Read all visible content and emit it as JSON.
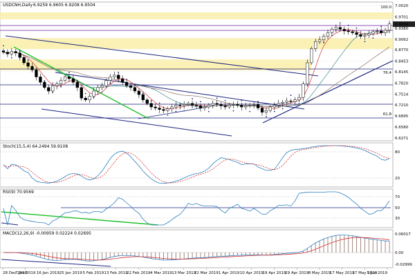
{
  "chart_data": {
    "type": "candlestick",
    "symbol_label": "USDCNH,Daily",
    "ohlc_label": "6.9259 6.9605 6.9208 6.9504",
    "last_price_label": "6.9504",
    "price_axis_labels": [
      "7.0020",
      "6.9701",
      "6.9380",
      "6.9062",
      "6.8770",
      "6.8453",
      "6.8145",
      "6.7820",
      "6.7514",
      "6.7210",
      "6.6895",
      "6.6580",
      "6.6271"
    ],
    "price_ylim": [
      6.6271,
      7.002
    ],
    "fib_labels": {
      "top": "100.0",
      "mid": "76.4",
      "low": "61.8"
    },
    "x_labels": [
      "28 Dec 2018",
      "7 Jan 2019",
      "16 Jan 2019",
      "25 Jan 2019",
      "5 Feb 2019",
      "13 Feb 2019",
      "22 Feb 2019",
      "4 Mar 2019",
      "13 Mar 2019",
      "22 Mar 2019",
      "1 Apr 2019",
      "10 Apr 2019",
      "19 Apr 2019",
      "29 Apr 2019",
      "8 May 2019",
      "17 May 2019",
      "27 May 2019",
      "5 Jun 2019"
    ],
    "closes": [
      6.87,
      6.865,
      6.872,
      6.868,
      6.855,
      6.84,
      6.83,
      6.82,
      6.8,
      6.785,
      6.77,
      6.76,
      6.775,
      6.78,
      6.79,
      6.8,
      6.795,
      6.785,
      6.77,
      6.74,
      6.735,
      6.745,
      6.76,
      6.77,
      6.775,
      6.79,
      6.8,
      6.805,
      6.795,
      6.785,
      6.775,
      6.77,
      6.76,
      6.75,
      6.735,
      6.725,
      6.715,
      6.712,
      6.708,
      6.705,
      6.71,
      6.715,
      6.72,
      6.718,
      6.722,
      6.725,
      6.72,
      6.718,
      6.712,
      6.715,
      6.72,
      6.725,
      6.722,
      6.718,
      6.715,
      6.72,
      6.722,
      6.72,
      6.715,
      6.718,
      6.72,
      6.722,
      6.712,
      6.7,
      6.705,
      6.715,
      6.72,
      6.725,
      6.728,
      6.732,
      6.73,
      6.735,
      6.742,
      6.78,
      6.84,
      6.88,
      6.9,
      6.905,
      6.915,
      6.925,
      6.935,
      6.94,
      6.935,
      6.93,
      6.928,
      6.925,
      6.92,
      6.915,
      6.918,
      6.922,
      6.928,
      6.93,
      6.925,
      6.932,
      6.95
    ],
    "stoch_label": "Stoch(15,5,4) 64.2494 59.9108",
    "stoch_axis_labels": [
      "80",
      "20"
    ],
    "rsi_label": "RSI(9) 70.9569",
    "rsi_axis_labels": [
      "70",
      "50",
      "30"
    ],
    "macd_label": "MACD(12,26,9) -0.00959 0.02224 0.02695",
    "macd_axis_labels": [
      "0.06017",
      "0.00",
      "-0.02999"
    ]
  }
}
